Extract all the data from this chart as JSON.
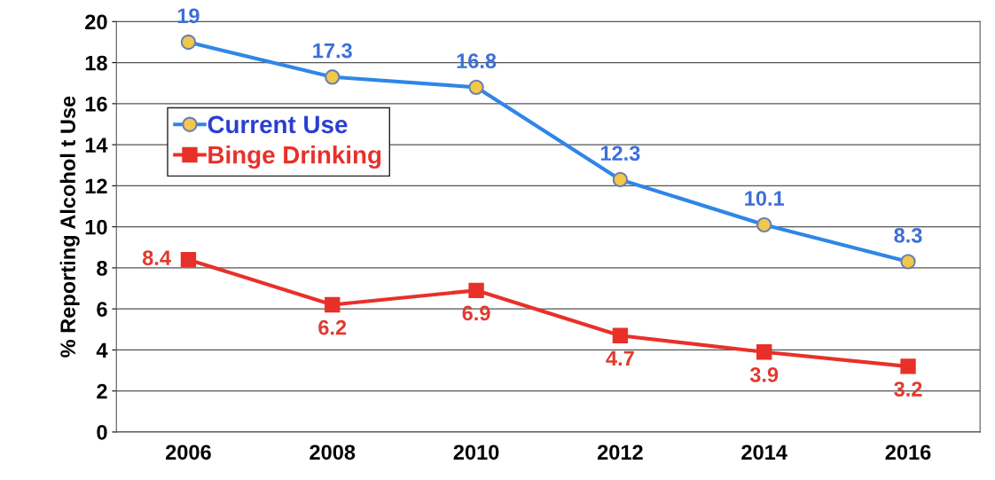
{
  "chart_data": {
    "type": "line",
    "ylabel": "% Reporting Alcohol t Use",
    "categories": [
      "2006",
      "2008",
      "2010",
      "2012",
      "2014",
      "2016"
    ],
    "series": [
      {
        "name": "Current Use",
        "color": "#2f86e6",
        "marker": "circle",
        "values": [
          19,
          17.3,
          16.8,
          12.3,
          10.1,
          8.3
        ]
      },
      {
        "name": "Binge Drinking",
        "color": "#e8302a",
        "marker": "square",
        "values": [
          8.4,
          6.2,
          6.9,
          4.7,
          3.9,
          3.2
        ]
      }
    ],
    "ylim": [
      0,
      20
    ],
    "yticks": [
      0,
      2,
      4,
      6,
      8,
      10,
      12,
      14,
      16,
      18,
      20
    ],
    "grid": "y",
    "legend": "top left",
    "data_labels": true
  }
}
